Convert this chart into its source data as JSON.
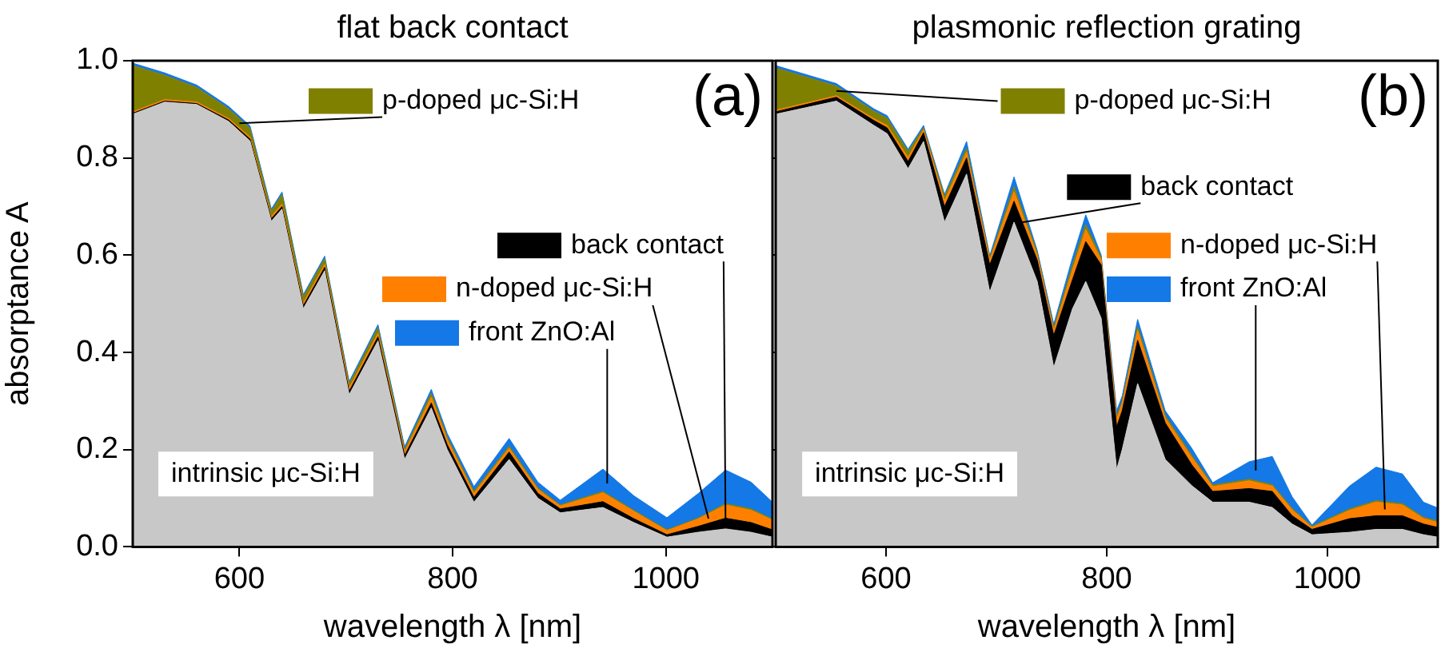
{
  "chart_data": [
    {
      "type": "area",
      "stacked": true,
      "title": "flat back contact",
      "xlabel": "wavelength λ [nm]",
      "ylabel": "absorptance A",
      "annotations": [
        "(a)"
      ],
      "legend": "top",
      "xlim": [
        500,
        1100
      ],
      "ylim": [
        0,
        1.0
      ],
      "xticks": [
        600,
        800,
        1000
      ],
      "yticks": [
        {
          "value": 0,
          "label": "0.0"
        },
        {
          "value": 0.2,
          "label": "0.2"
        },
        {
          "value": 0.4,
          "label": "0.4"
        },
        {
          "value": 0.6,
          "label": "0.6"
        },
        {
          "value": 0.8,
          "label": "0.8"
        },
        {
          "value": 1.0,
          "label": "1.0"
        }
      ],
      "grid": false,
      "x": [
        500,
        530,
        560,
        590,
        610,
        630,
        640,
        660,
        680,
        703,
        730,
        755,
        780,
        795,
        820,
        853,
        880,
        901,
        941,
        970,
        1001,
        1030,
        1056,
        1080,
        1100
      ],
      "series": [
        {
          "name": "intrinsic μc-Si:H",
          "color": "#c8c8c8",
          "values": [
            0.89,
            0.915,
            0.91,
            0.875,
            0.835,
            0.67,
            0.695,
            0.49,
            0.568,
            0.313,
            0.424,
            0.18,
            0.286,
            0.2,
            0.092,
            0.18,
            0.1,
            0.07,
            0.081,
            0.05,
            0.02,
            0.03,
            0.037,
            0.03,
            0.02
          ]
        },
        {
          "name": "back contact",
          "color": "#000000",
          "values": [
            0.002,
            0.002,
            0.002,
            0.003,
            0.004,
            0.005,
            0.005,
            0.006,
            0.007,
            0.007,
            0.008,
            0.008,
            0.01,
            0.01,
            0.01,
            0.015,
            0.01,
            0.008,
            0.012,
            0.008,
            0.005,
            0.012,
            0.022,
            0.02,
            0.015
          ]
        },
        {
          "name": "n-doped μc-Si:H",
          "color": "#ff8000",
          "values": [
            0.003,
            0.003,
            0.003,
            0.003,
            0.004,
            0.005,
            0.005,
            0.006,
            0.006,
            0.007,
            0.007,
            0.007,
            0.012,
            0.01,
            0.008,
            0.008,
            0.008,
            0.006,
            0.018,
            0.015,
            0.008,
            0.015,
            0.027,
            0.025,
            0.02
          ]
        },
        {
          "name": "p-doped μc-Si:H",
          "color": "#808000",
          "values": [
            0.095,
            0.05,
            0.03,
            0.02,
            0.018,
            0.01,
            0.02,
            0.012,
            0.012,
            0.008,
            0.012,
            0.005,
            0.008,
            0.005,
            0.004,
            0.004,
            0.003,
            0.002,
            0.003,
            0.002,
            0.002,
            0.002,
            0.003,
            0.003,
            0.002
          ]
        },
        {
          "name": "front ZnO:Al",
          "color": "#1478e6",
          "values": [
            0.005,
            0.005,
            0.005,
            0.005,
            0.005,
            0.005,
            0.005,
            0.005,
            0.005,
            0.005,
            0.006,
            0.006,
            0.008,
            0.008,
            0.01,
            0.016,
            0.012,
            0.01,
            0.046,
            0.03,
            0.025,
            0.05,
            0.069,
            0.055,
            0.035
          ]
        }
      ]
    },
    {
      "type": "area",
      "stacked": true,
      "title": "plasmonic reflection grating",
      "xlabel": "wavelength λ [nm]",
      "annotations": [
        "(b)"
      ],
      "xlim": [
        500,
        1100
      ],
      "ylim": [
        0,
        1.0
      ],
      "xticks": [
        600,
        800,
        1000
      ],
      "yticks": [
        {
          "value": 0,
          "label": null
        },
        {
          "value": 0.2,
          "label": null
        },
        {
          "value": 0.4,
          "label": null
        },
        {
          "value": 0.6,
          "label": null
        },
        {
          "value": 0.8,
          "label": null
        },
        {
          "value": 1.0,
          "label": null
        }
      ],
      "grid": false,
      "tick_labels": "x",
      "legend": "top",
      "x": [
        500,
        555,
        589,
        601,
        620,
        634,
        653,
        673,
        694,
        716,
        737,
        752,
        769,
        781,
        795,
        809,
        814,
        828,
        853,
        877,
        896,
        929,
        950,
        968,
        986,
        1020,
        1044,
        1068,
        1087,
        1100
      ],
      "series": [
        {
          "name": "intrinsic μc-Si:H",
          "color": "#c8c8c8",
          "values": [
            0.89,
            0.917,
            0.867,
            0.85,
            0.778,
            0.834,
            0.668,
            0.767,
            0.524,
            0.668,
            0.546,
            0.369,
            0.49,
            0.546,
            0.47,
            0.159,
            0.2,
            0.336,
            0.18,
            0.126,
            0.092,
            0.092,
            0.081,
            0.047,
            0.025,
            0.03,
            0.036,
            0.036,
            0.025,
            0.02
          ]
        },
        {
          "name": "back contact",
          "color": "#000000",
          "values": [
            0.005,
            0.008,
            0.01,
            0.012,
            0.015,
            0.018,
            0.032,
            0.033,
            0.056,
            0.043,
            0.044,
            0.066,
            0.06,
            0.082,
            0.11,
            0.088,
            0.08,
            0.089,
            0.075,
            0.043,
            0.022,
            0.028,
            0.033,
            0.017,
            0.011,
            0.028,
            0.028,
            0.028,
            0.022,
            0.02
          ]
        },
        {
          "name": "n-doped μc-Si:H",
          "color": "#ff8000",
          "values": [
            0.003,
            0.003,
            0.004,
            0.005,
            0.008,
            0.006,
            0.012,
            0.012,
            0.01,
            0.02,
            0.01,
            0.01,
            0.02,
            0.025,
            0.01,
            0.015,
            0.015,
            0.02,
            0.01,
            0.015,
            0.01,
            0.016,
            0.011,
            0.012,
            0.004,
            0.017,
            0.028,
            0.022,
            0.011,
            0.01
          ]
        },
        {
          "name": "p-doped μc-Si:H",
          "color": "#808000",
          "values": [
            0.087,
            0.02,
            0.015,
            0.015,
            0.012,
            0.004,
            0.008,
            0.008,
            0.004,
            0.01,
            0.005,
            0.005,
            0.01,
            0.01,
            0.005,
            0.005,
            0.005,
            0.008,
            0.005,
            0.004,
            0.003,
            0.003,
            0.003,
            0.003,
            0.002,
            0.003,
            0.003,
            0.003,
            0.003,
            0.003
          ]
        },
        {
          "name": "front ZnO:Al",
          "color": "#1478e6",
          "values": [
            0.005,
            0.005,
            0.005,
            0.005,
            0.005,
            0.005,
            0.005,
            0.014,
            0.005,
            0.02,
            0.005,
            0.008,
            0.015,
            0.02,
            0.005,
            0.013,
            0.01,
            0.015,
            0.01,
            0.015,
            0.005,
            0.036,
            0.058,
            0.024,
            0.003,
            0.047,
            0.069,
            0.061,
            0.031,
            0.027
          ]
        }
      ]
    }
  ]
}
